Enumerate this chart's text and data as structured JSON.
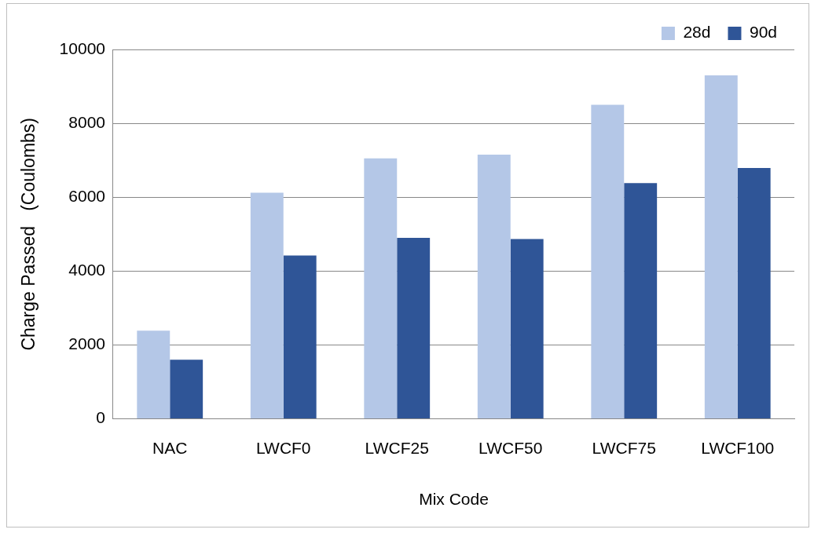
{
  "chart_data": {
    "type": "bar",
    "xlabel": "Mix Code",
    "ylabel": "Charge Passed   (Coulombs)",
    "categories": [
      "NAC",
      "LWCF0",
      "LWCF25",
      "LWCF50",
      "LWCF75",
      "LWCF100"
    ],
    "series": [
      {
        "name": "28d",
        "color": "#b4c7e7",
        "values": [
          2390,
          6120,
          7050,
          7150,
          8500,
          9300
        ]
      },
      {
        "name": "90d",
        "color": "#2f5597",
        "values": [
          1600,
          4420,
          4900,
          4870,
          6380,
          6790
        ]
      }
    ],
    "ylim": [
      0,
      10000
    ],
    "yticks": [
      0,
      2000,
      4000,
      6000,
      8000,
      10000
    ],
    "grid": "y",
    "legend": "top right"
  }
}
